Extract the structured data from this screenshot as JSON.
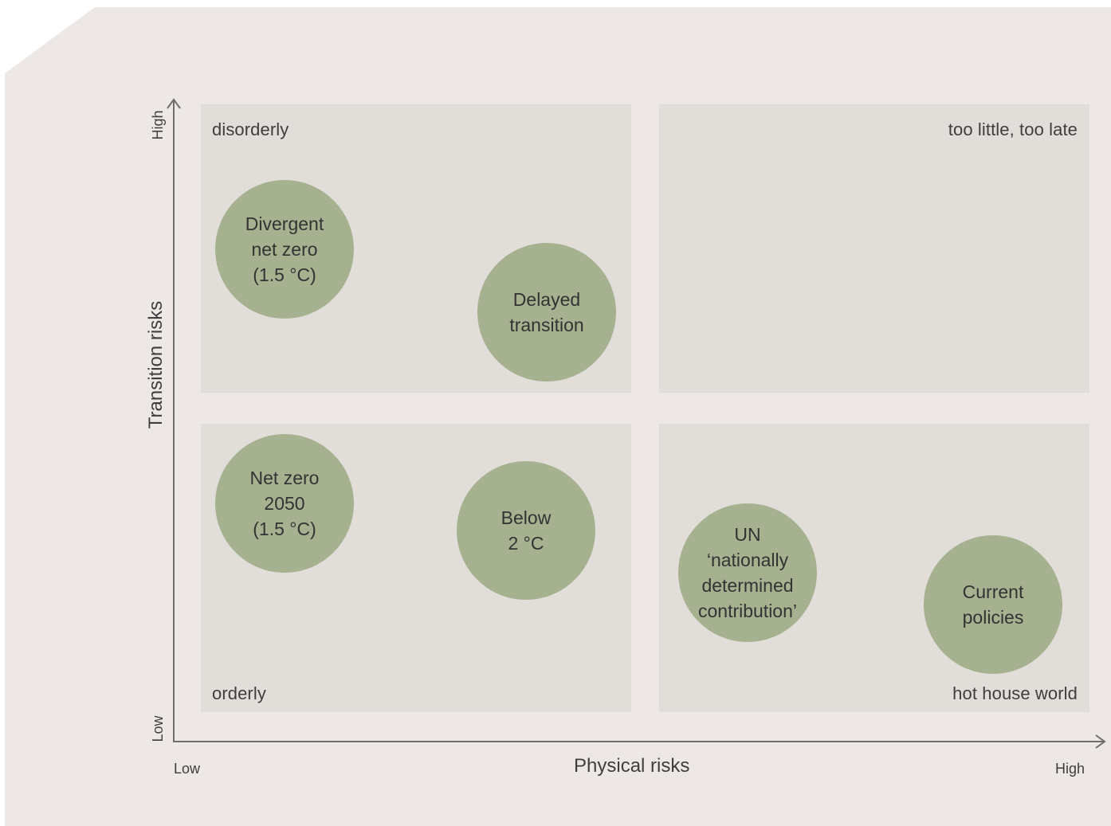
{
  "colors": {
    "background": "#ede8e5",
    "quadrant_fill": "#e1ddd9",
    "bubble_fill": "#a6b190",
    "axis": "#6e6e6e",
    "text": "#3e3e3e"
  },
  "axes": {
    "x_title": "Physical risks",
    "x_low": "Low",
    "x_high": "High",
    "y_title": "Transition risks",
    "y_low": "Low",
    "y_high": "High"
  },
  "quadrants": {
    "top_left": "disorderly",
    "top_right": "too little, too late",
    "bottom_left": "orderly",
    "bottom_right": "hot house world"
  },
  "scenarios": {
    "divergent": "Divergent\nnet zero\n(1.5 °C)",
    "delayed": "Delayed\ntransition",
    "net_zero": "Net zero\n2050\n(1.5 °C)",
    "below_2": "Below\n2 °C",
    "ndc": "UN\n‘nationally\ndetermined\ncontribution’",
    "current": "Current\npolicies"
  }
}
